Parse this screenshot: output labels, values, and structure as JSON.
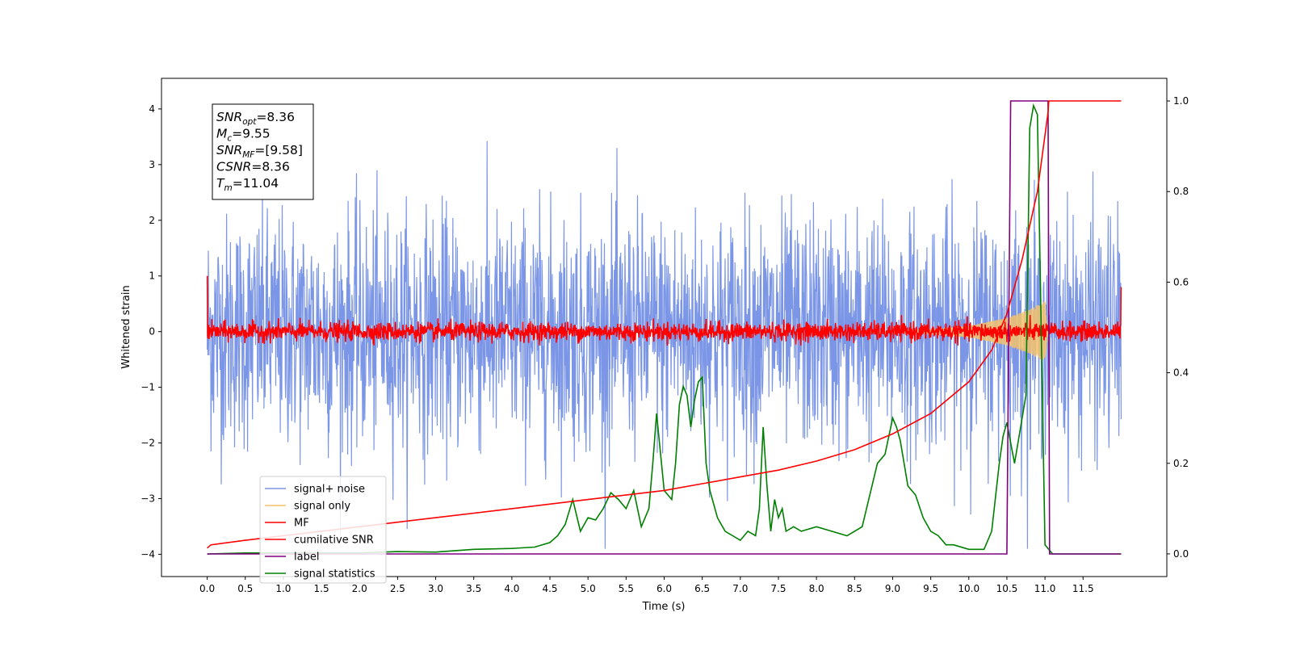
{
  "chart_data": {
    "type": "line",
    "title": "",
    "xlabel": "Time (s)",
    "ylabel": "Whitened strain",
    "y2label": "",
    "xlim": [
      -0.6,
      12.6
    ],
    "ylim": [
      -4.4,
      4.55
    ],
    "y2lim": [
      -0.05,
      1.05
    ],
    "x_ticks": [
      0.0,
      0.5,
      1.0,
      1.5,
      2.0,
      2.5,
      3.0,
      3.5,
      4.0,
      4.5,
      5.0,
      5.5,
      6.0,
      6.5,
      7.0,
      7.5,
      8.0,
      8.5,
      9.0,
      9.5,
      10.0,
      10.5,
      11.0,
      11.5
    ],
    "x_tick_labels": [
      "0.0",
      "0.5",
      "1.0",
      "1.5",
      "2.0",
      "2.5",
      "3.0",
      "3.5",
      "4.0",
      "4.5",
      "5.0",
      "5.5",
      "6.0",
      "6.5",
      "7.0",
      "7.5",
      "8.0",
      "8.5",
      "9.0",
      "9.5",
      "10.0",
      "10.5",
      "11.0",
      "11.5"
    ],
    "y_ticks": [
      -4,
      -3,
      -2,
      -1,
      0,
      1,
      2,
      3,
      4
    ],
    "y_tick_labels": [
      "−4",
      "−3",
      "−2",
      "−1",
      "0",
      "1",
      "2",
      "3",
      "4"
    ],
    "y2_ticks": [
      0.0,
      0.2,
      0.4,
      0.6,
      0.8,
      1.0
    ],
    "y2_tick_labels": [
      "0.0",
      "0.2",
      "0.4",
      "0.6",
      "0.8",
      "1.0"
    ],
    "grid": false,
    "legend_position": "lower-left",
    "annotation_box": {
      "position": "top-left",
      "lines": [
        {
          "name": "SNR",
          "sub": "opt",
          "value": "=8.36"
        },
        {
          "name": "M",
          "sub": "c",
          "value": "=9.55"
        },
        {
          "name": "SNR",
          "sub": "MF",
          "value": "=[9.58]"
        },
        {
          "name": "CSNR",
          "sub": "",
          "value": "=8.36"
        },
        {
          "name": "T",
          "sub": "m",
          "value": "=11.04"
        }
      ]
    },
    "series": [
      {
        "name": "signal+ noise",
        "color": "#7b96e6",
        "axis": "left",
        "kind": "noise",
        "x_range": [
          0.0,
          12.0
        ],
        "typical_range": [
          -2.3,
          2.3
        ],
        "peak_range": [
          -3.9,
          4.0
        ]
      },
      {
        "name": "signal only",
        "color": "#f5c26b",
        "axis": "left",
        "kind": "chirp",
        "x_range": [
          0.0,
          11.04
        ],
        "amplitude_points": [
          [
            9.0,
            0.02
          ],
          [
            9.5,
            0.04
          ],
          [
            10.0,
            0.1
          ],
          [
            10.5,
            0.25
          ],
          [
            10.8,
            0.4
          ],
          [
            11.0,
            0.55
          ],
          [
            11.04,
            0.0
          ]
        ]
      },
      {
        "name": "MF",
        "color": "#ff0000",
        "axis": "left",
        "kind": "noise",
        "x_range": [
          0.0,
          12.0
        ],
        "typical_range": [
          -0.15,
          0.15
        ],
        "peak_range": [
          -0.25,
          0.3
        ],
        "endpoints": [
          [
            0.0,
            1.0
          ],
          [
            12.0,
            0.8
          ]
        ]
      },
      {
        "name": "cumilative SNR",
        "color": "#ff0000",
        "axis": "right",
        "x": [
          0.0,
          0.05,
          0.5,
          1.0,
          2.0,
          3.0,
          4.0,
          5.0,
          6.0,
          6.5,
          7.0,
          7.5,
          8.0,
          8.5,
          9.0,
          9.5,
          10.0,
          10.3,
          10.5,
          10.7,
          10.9,
          11.04,
          11.05,
          12.0
        ],
        "values": [
          0.013,
          0.02,
          0.03,
          0.04,
          0.06,
          0.08,
          0.1,
          0.12,
          0.14,
          0.155,
          0.17,
          0.185,
          0.205,
          0.23,
          0.265,
          0.31,
          0.38,
          0.45,
          0.53,
          0.65,
          0.8,
          0.975,
          1.0,
          1.0
        ]
      },
      {
        "name": "label",
        "color": "#800080",
        "axis": "right",
        "x": [
          0.0,
          10.5,
          10.55,
          11.04,
          11.06,
          12.0
        ],
        "values": [
          0.0,
          0.0,
          1.0,
          1.0,
          0.0,
          0.0
        ]
      },
      {
        "name": "signal statistics",
        "color": "#008000",
        "axis": "right",
        "x": [
          0.0,
          0.5,
          1.0,
          2.0,
          2.5,
          3.0,
          3.5,
          4.0,
          4.3,
          4.5,
          4.6,
          4.7,
          4.8,
          4.9,
          5.0,
          5.1,
          5.2,
          5.3,
          5.4,
          5.5,
          5.6,
          5.7,
          5.8,
          5.85,
          5.9,
          6.0,
          6.1,
          6.15,
          6.2,
          6.25,
          6.3,
          6.35,
          6.4,
          6.45,
          6.5,
          6.55,
          6.6,
          6.7,
          6.8,
          6.9,
          7.0,
          7.1,
          7.2,
          7.25,
          7.3,
          7.35,
          7.4,
          7.45,
          7.5,
          7.55,
          7.6,
          7.7,
          7.8,
          8.0,
          8.2,
          8.4,
          8.6,
          8.8,
          8.9,
          9.0,
          9.05,
          9.1,
          9.2,
          9.3,
          9.4,
          9.5,
          9.6,
          9.7,
          9.8,
          10.0,
          10.2,
          10.3,
          10.4,
          10.45,
          10.5,
          10.6,
          10.7,
          10.75,
          10.8,
          10.85,
          10.9,
          10.95,
          11.0,
          11.05,
          11.1,
          12.0
        ],
        "values": [
          0.0,
          0.002,
          0.002,
          0.002,
          0.005,
          0.004,
          0.01,
          0.012,
          0.015,
          0.025,
          0.04,
          0.065,
          0.12,
          0.05,
          0.08,
          0.075,
          0.1,
          0.135,
          0.12,
          0.1,
          0.14,
          0.06,
          0.1,
          0.2,
          0.31,
          0.14,
          0.12,
          0.2,
          0.33,
          0.37,
          0.35,
          0.28,
          0.34,
          0.38,
          0.39,
          0.2,
          0.14,
          0.08,
          0.05,
          0.04,
          0.03,
          0.05,
          0.04,
          0.1,
          0.28,
          0.15,
          0.05,
          0.12,
          0.08,
          0.1,
          0.05,
          0.06,
          0.05,
          0.06,
          0.05,
          0.04,
          0.06,
          0.2,
          0.22,
          0.3,
          0.28,
          0.25,
          0.15,
          0.13,
          0.08,
          0.05,
          0.04,
          0.02,
          0.02,
          0.01,
          0.01,
          0.05,
          0.2,
          0.26,
          0.29,
          0.2,
          0.3,
          0.35,
          0.94,
          0.99,
          0.97,
          0.5,
          0.02,
          0.01,
          0.0,
          0.0
        ]
      }
    ]
  }
}
